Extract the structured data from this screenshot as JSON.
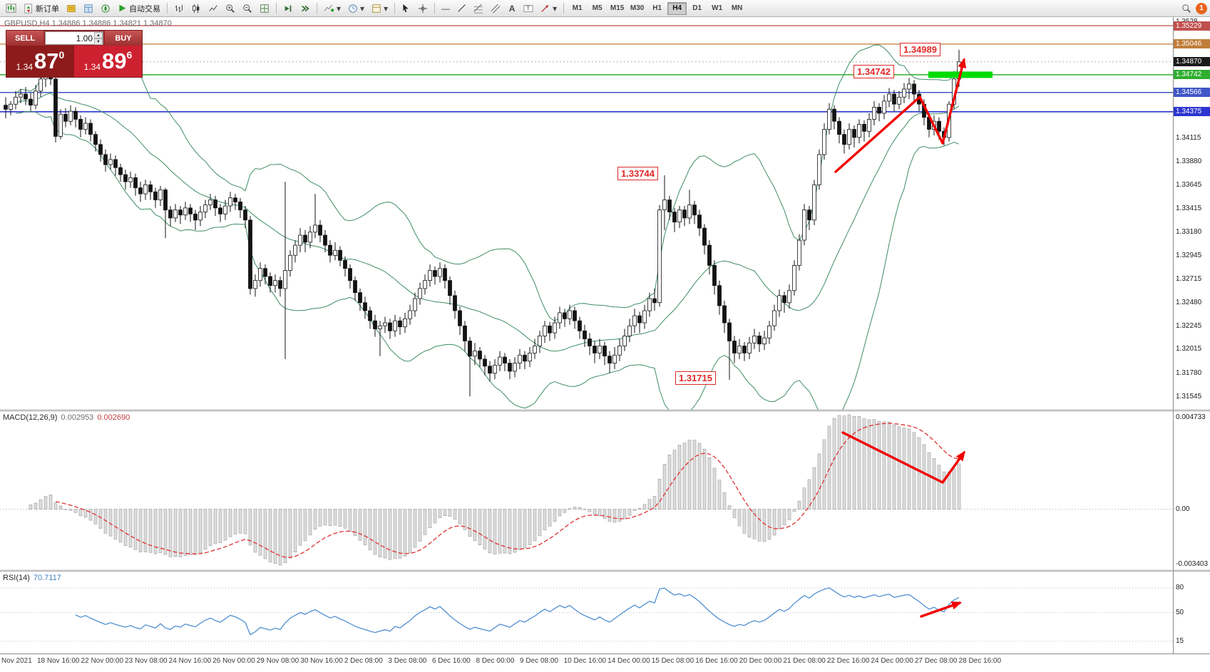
{
  "toolbar": {
    "new_order_label": "新订单",
    "autotrading_label": "自动交易",
    "timeframes": [
      "M1",
      "M5",
      "M15",
      "M30",
      "H1",
      "H4",
      "D1",
      "W1",
      "MN"
    ],
    "active_timeframe": "H4",
    "notification_count": "1"
  },
  "chart": {
    "symbol_title": "GBPUSD,H4 1.34886 1.34886 1.34821 1.34870",
    "trade_panel": {
      "sell_label": "SELL",
      "buy_label": "BUY",
      "volume": "1.00",
      "sell_price": {
        "prefix": "1.34",
        "big": "87",
        "sup": "0"
      },
      "buy_price": {
        "prefix": "1.34",
        "big": "89",
        "sup": "6"
      }
    },
    "highlight_price": 1.34742,
    "price_axis": {
      "top_partial_label": "1.3528",
      "plain_labels": [
        "1.34115",
        "1.33880",
        "1.33645",
        "1.33415",
        "1.33180",
        "1.32945",
        "1.32715",
        "1.32480",
        "1.32245",
        "1.32015",
        "1.31780",
        "1.31545"
      ],
      "line_labels": [
        {
          "text": "1.35229",
          "value": 1.35229,
          "color": "#c0504d",
          "line_color": "#c0504d",
          "style": "solid",
          "width": 1.2
        },
        {
          "text": "1.35046",
          "value": 1.35046,
          "color": "#c07e3a",
          "line_color": "#c07e3a",
          "style": "solid",
          "width": 1.2
        },
        {
          "text": "1.34870",
          "value": 1.3487,
          "color": "#1b1b1b",
          "line_color": "#b0b0b0",
          "style": "dotted",
          "width": 1
        },
        {
          "text": "1.34742",
          "value": 1.34742,
          "color": "#2fae2f",
          "line_color": "#2fae2f",
          "style": "solid",
          "width": 1.4
        },
        {
          "text": "1.34566",
          "value": 1.34566,
          "color": "#4156c8",
          "line_color": "#4156c8",
          "style": "solid",
          "width": 1.6
        },
        {
          "text": "1.34375",
          "value": 1.34375,
          "color": "#2c35cf",
          "line_color": "#2c35cf",
          "style": "solid",
          "width": 1.6
        }
      ]
    },
    "annotations": [
      {
        "text": "1.34989"
      },
      {
        "text": "1.34742"
      },
      {
        "text": "1.33744"
      },
      {
        "text": "1.31715"
      }
    ],
    "colors": {
      "bull": "#ffffff",
      "bear": "#131313",
      "wick": "#131313",
      "bollinger": "#3e8e63",
      "arrow": "#f20000",
      "highlight": "#00dc00",
      "macd_histogram": "#dcdcdc",
      "macd_histogram_border": "#9c9c9c",
      "macd_signal": "#e03030",
      "rsi_line": "#4f8fd0"
    }
  },
  "macd_panel": {
    "name": "MACD(12,26,9)",
    "main_value": "0.002953",
    "signal_value": "0.002690",
    "scale_max": "0.004733",
    "scale_zero": "0.00",
    "scale_min": "-0.003403"
  },
  "rsi_panel": {
    "name": "RSI(14)",
    "value": "70.7117",
    "levels": [
      "80",
      "50",
      "15"
    ]
  },
  "time_axis": {
    "labels": [
      "Nov 2021",
      "18 Nov 16:00",
      "22 Nov 00:00",
      "23 Nov 08:00",
      "24 Nov 16:00",
      "26 Nov 00:00",
      "29 Nov 08:00",
      "30 Nov 16:00",
      "2 Dec 08:00",
      "3 Dec 08:00",
      "6 Dec 16:00",
      "8 Dec 00:00",
      "9 Dec 08:00",
      "10 Dec 16:00",
      "14 Dec 00:00",
      "15 Dec 08:00",
      "16 Dec 16:00",
      "20 Dec 00:00",
      "21 Dec 08:00",
      "22 Dec 16:00",
      "24 Dec 00:00",
      "27 Dec 08:00",
      "28 Dec 16:00"
    ]
  },
  "chart_data": {
    "type": "candlestick",
    "symbol": "GBPUSD",
    "timeframe": "H4",
    "levels": [
      1.35229,
      1.35046,
      1.34742,
      1.34566,
      1.34375
    ],
    "current_price": 1.3487,
    "indicators": [
      {
        "type": "bollinger",
        "period": 20,
        "deviation": 2
      },
      {
        "type": "macd",
        "fast": 12,
        "slow": 26,
        "signal": 9,
        "values": [
          0.002953,
          0.00269
        ],
        "scale": [
          0.004733,
          0.0,
          -0.003403
        ]
      },
      {
        "type": "rsi",
        "period": 14,
        "value": 70.7117,
        "levels": [
          80,
          50,
          15
        ]
      }
    ],
    "annotated_prices": [
      1.34989,
      1.34742,
      1.33744,
      1.31715
    ],
    "ohlc": [
      [
        1.3444,
        1.3452,
        1.3431,
        1.344
      ],
      [
        1.344,
        1.3448,
        1.3434,
        1.3445
      ],
      [
        1.3445,
        1.3458,
        1.344,
        1.3452
      ],
      [
        1.3452,
        1.346,
        1.3446,
        1.3455
      ],
      [
        1.3455,
        1.3462,
        1.3444,
        1.345
      ],
      [
        1.345,
        1.3456,
        1.3438,
        1.3444
      ],
      [
        1.3444,
        1.3464,
        1.344,
        1.3458
      ],
      [
        1.3458,
        1.3477,
        1.3452,
        1.347
      ],
      [
        1.347,
        1.3482,
        1.3462,
        1.3476
      ],
      [
        1.3476,
        1.3482,
        1.3464,
        1.347
      ],
      [
        1.347,
        1.3483,
        1.3407,
        1.3413
      ],
      [
        1.3413,
        1.344,
        1.341,
        1.3435
      ],
      [
        1.3435,
        1.3441,
        1.3422,
        1.3428
      ],
      [
        1.3428,
        1.3444,
        1.3424,
        1.3438
      ],
      [
        1.3438,
        1.3442,
        1.3422,
        1.343
      ],
      [
        1.343,
        1.3434,
        1.3412,
        1.342
      ],
      [
        1.342,
        1.3432,
        1.3415,
        1.3426
      ],
      [
        1.3426,
        1.343,
        1.3408,
        1.3415
      ],
      [
        1.3415,
        1.3418,
        1.3398,
        1.3405
      ],
      [
        1.3405,
        1.341,
        1.3388,
        1.3395
      ],
      [
        1.3395,
        1.34,
        1.3378,
        1.3385
      ],
      [
        1.3385,
        1.3396,
        1.338,
        1.339
      ],
      [
        1.339,
        1.3394,
        1.3374,
        1.3382
      ],
      [
        1.3382,
        1.3386,
        1.3368,
        1.3375
      ],
      [
        1.3375,
        1.338,
        1.336,
        1.3368
      ],
      [
        1.3368,
        1.3378,
        1.3362,
        1.3372
      ],
      [
        1.3372,
        1.3376,
        1.3354,
        1.3362
      ],
      [
        1.3362,
        1.3368,
        1.3348,
        1.3356
      ],
      [
        1.3356,
        1.337,
        1.335,
        1.3365
      ],
      [
        1.3365,
        1.3369,
        1.335,
        1.3358
      ],
      [
        1.3358,
        1.3362,
        1.3342,
        1.335
      ],
      [
        1.335,
        1.3364,
        1.3344,
        1.336
      ],
      [
        1.336,
        1.3362,
        1.3312,
        1.334
      ],
      [
        1.334,
        1.3344,
        1.3324,
        1.3332
      ],
      [
        1.3332,
        1.3346,
        1.3328,
        1.334
      ],
      [
        1.334,
        1.3344,
        1.3326,
        1.3335
      ],
      [
        1.3335,
        1.3348,
        1.333,
        1.3342
      ],
      [
        1.3342,
        1.3346,
        1.3328,
        1.3336
      ],
      [
        1.3336,
        1.334,
        1.332,
        1.333
      ],
      [
        1.333,
        1.3344,
        1.3324,
        1.3338
      ],
      [
        1.3338,
        1.335,
        1.3332,
        1.3345
      ],
      [
        1.3345,
        1.3356,
        1.334,
        1.335
      ],
      [
        1.335,
        1.3354,
        1.3334,
        1.3342
      ],
      [
        1.3342,
        1.3346,
        1.3328,
        1.3336
      ],
      [
        1.3336,
        1.335,
        1.333,
        1.3344
      ],
      [
        1.3344,
        1.3358,
        1.3338,
        1.3352
      ],
      [
        1.3352,
        1.3356,
        1.334,
        1.3348
      ],
      [
        1.3348,
        1.3352,
        1.3332,
        1.334
      ],
      [
        1.334,
        1.3344,
        1.3322,
        1.333
      ],
      [
        1.333,
        1.3334,
        1.3256,
        1.3262
      ],
      [
        1.3262,
        1.3276,
        1.3254,
        1.327
      ],
      [
        1.327,
        1.3288,
        1.3264,
        1.3282
      ],
      [
        1.3282,
        1.3286,
        1.3266,
        1.3274
      ],
      [
        1.3274,
        1.3278,
        1.3258,
        1.3265
      ],
      [
        1.3265,
        1.3276,
        1.3258,
        1.327
      ],
      [
        1.327,
        1.3274,
        1.3254,
        1.3262
      ],
      [
        1.3262,
        1.3368,
        1.3192,
        1.328
      ],
      [
        1.328,
        1.33,
        1.3274,
        1.3295
      ],
      [
        1.3295,
        1.331,
        1.3288,
        1.3305
      ],
      [
        1.3305,
        1.3322,
        1.3298,
        1.3315
      ],
      [
        1.3315,
        1.332,
        1.3298,
        1.3308
      ],
      [
        1.3308,
        1.3324,
        1.3302,
        1.3318
      ],
      [
        1.3318,
        1.3356,
        1.3312,
        1.3325
      ],
      [
        1.3325,
        1.333,
        1.3308,
        1.3315
      ],
      [
        1.3315,
        1.332,
        1.3298,
        1.3305
      ],
      [
        1.3305,
        1.331,
        1.3288,
        1.3295
      ],
      [
        1.3295,
        1.3308,
        1.329,
        1.33
      ],
      [
        1.33,
        1.3304,
        1.3284,
        1.329
      ],
      [
        1.329,
        1.3294,
        1.3274,
        1.3282
      ],
      [
        1.3282,
        1.3286,
        1.3262,
        1.327
      ],
      [
        1.327,
        1.3274,
        1.325,
        1.3258
      ],
      [
        1.3258,
        1.3262,
        1.324,
        1.3248
      ],
      [
        1.3248,
        1.3254,
        1.3232,
        1.324
      ],
      [
        1.324,
        1.3244,
        1.3222,
        1.323
      ],
      [
        1.323,
        1.3236,
        1.3214,
        1.3222
      ],
      [
        1.3222,
        1.323,
        1.3195,
        1.3225
      ],
      [
        1.3225,
        1.3234,
        1.3218,
        1.3228
      ],
      [
        1.3228,
        1.3232,
        1.3212,
        1.322
      ],
      [
        1.322,
        1.3236,
        1.3214,
        1.323
      ],
      [
        1.323,
        1.3234,
        1.3216,
        1.3224
      ],
      [
        1.3224,
        1.3238,
        1.3218,
        1.3232
      ],
      [
        1.3232,
        1.3246,
        1.3226,
        1.324
      ],
      [
        1.324,
        1.3258,
        1.3234,
        1.3252
      ],
      [
        1.3252,
        1.3268,
        1.3246,
        1.3262
      ],
      [
        1.3262,
        1.3276,
        1.3256,
        1.327
      ],
      [
        1.327,
        1.3286,
        1.3264,
        1.328
      ],
      [
        1.328,
        1.3284,
        1.3266,
        1.3274
      ],
      [
        1.3274,
        1.3288,
        1.3268,
        1.3282
      ],
      [
        1.3282,
        1.3286,
        1.3262,
        1.327
      ],
      [
        1.327,
        1.3274,
        1.3246,
        1.3255
      ],
      [
        1.3255,
        1.326,
        1.3232,
        1.324
      ],
      [
        1.324,
        1.3244,
        1.3216,
        1.3225
      ],
      [
        1.3225,
        1.323,
        1.32,
        1.321
      ],
      [
        1.321,
        1.3214,
        1.3155,
        1.3195
      ],
      [
        1.3195,
        1.3208,
        1.3186,
        1.32
      ],
      [
        1.32,
        1.3204,
        1.3184,
        1.3192
      ],
      [
        1.3192,
        1.3196,
        1.3176,
        1.3185
      ],
      [
        1.3185,
        1.319,
        1.317,
        1.3178
      ],
      [
        1.3178,
        1.3192,
        1.3172,
        1.3186
      ],
      [
        1.3186,
        1.32,
        1.318,
        1.3194
      ],
      [
        1.3194,
        1.3198,
        1.318,
        1.3188
      ],
      [
        1.3188,
        1.3192,
        1.3172,
        1.318
      ],
      [
        1.318,
        1.3194,
        1.3174,
        1.3188
      ],
      [
        1.3188,
        1.3202,
        1.3182,
        1.3196
      ],
      [
        1.3196,
        1.32,
        1.3182,
        1.319
      ],
      [
        1.319,
        1.3204,
        1.3184,
        1.3198
      ],
      [
        1.3198,
        1.3212,
        1.3192,
        1.3205
      ],
      [
        1.3205,
        1.322,
        1.3198,
        1.3215
      ],
      [
        1.3215,
        1.323,
        1.3208,
        1.3225
      ],
      [
        1.3225,
        1.3229,
        1.321,
        1.3218
      ],
      [
        1.3218,
        1.3234,
        1.3212,
        1.3228
      ],
      [
        1.3228,
        1.3244,
        1.3222,
        1.3238
      ],
      [
        1.3238,
        1.3242,
        1.3224,
        1.3232
      ],
      [
        1.3232,
        1.3246,
        1.3226,
        1.324
      ],
      [
        1.324,
        1.3244,
        1.3222,
        1.323
      ],
      [
        1.323,
        1.3234,
        1.3212,
        1.322
      ],
      [
        1.322,
        1.3226,
        1.3204,
        1.3212
      ],
      [
        1.3212,
        1.3218,
        1.3196,
        1.3205
      ],
      [
        1.3205,
        1.321,
        1.3188,
        1.3198
      ],
      [
        1.3198,
        1.3212,
        1.3192,
        1.3205
      ],
      [
        1.3205,
        1.3209,
        1.3186,
        1.3195
      ],
      [
        1.3195,
        1.32,
        1.3178,
        1.3188
      ],
      [
        1.3188,
        1.3204,
        1.3182,
        1.3196
      ],
      [
        1.3196,
        1.3212,
        1.319,
        1.3205
      ],
      [
        1.3205,
        1.3222,
        1.32,
        1.3215
      ],
      [
        1.3215,
        1.3232,
        1.3209,
        1.3225
      ],
      [
        1.3225,
        1.3242,
        1.3218,
        1.3235
      ],
      [
        1.3235,
        1.3239,
        1.3218,
        1.3228
      ],
      [
        1.3228,
        1.3246,
        1.3222,
        1.324
      ],
      [
        1.324,
        1.3258,
        1.3234,
        1.3252
      ],
      [
        1.3252,
        1.3262,
        1.324,
        1.3248
      ],
      [
        1.3248,
        1.3345,
        1.3244,
        1.334
      ],
      [
        1.334,
        1.33744,
        1.332,
        1.335
      ],
      [
        1.335,
        1.3354,
        1.333,
        1.3338
      ],
      [
        1.3338,
        1.3342,
        1.3318,
        1.3328
      ],
      [
        1.3328,
        1.3344,
        1.3322,
        1.334
      ],
      [
        1.334,
        1.3344,
        1.3324,
        1.3332
      ],
      [
        1.3332,
        1.336,
        1.3326,
        1.3345
      ],
      [
        1.3345,
        1.3349,
        1.3326,
        1.3335
      ],
      [
        1.3335,
        1.334,
        1.3314,
        1.3322
      ],
      [
        1.3322,
        1.3326,
        1.3296,
        1.3305
      ],
      [
        1.3305,
        1.331,
        1.3276,
        1.3285
      ],
      [
        1.3285,
        1.329,
        1.3256,
        1.3265
      ],
      [
        1.3265,
        1.327,
        1.3236,
        1.3245
      ],
      [
        1.3245,
        1.325,
        1.3218,
        1.3228
      ],
      [
        1.3228,
        1.3232,
        1.31715,
        1.321
      ],
      [
        1.321,
        1.3215,
        1.3188,
        1.3198
      ],
      [
        1.3198,
        1.3212,
        1.3192,
        1.3205
      ],
      [
        1.3205,
        1.3209,
        1.319,
        1.3198
      ],
      [
        1.3198,
        1.3214,
        1.3192,
        1.3208
      ],
      [
        1.3208,
        1.3222,
        1.3202,
        1.3215
      ],
      [
        1.3215,
        1.3219,
        1.3199,
        1.3207
      ],
      [
        1.3207,
        1.322,
        1.3201,
        1.3213
      ],
      [
        1.3213,
        1.323,
        1.3207,
        1.3225
      ],
      [
        1.3225,
        1.3246,
        1.322,
        1.324
      ],
      [
        1.324,
        1.3261,
        1.3234,
        1.3255
      ],
      [
        1.3255,
        1.3259,
        1.3238,
        1.3248
      ],
      [
        1.3248,
        1.3266,
        1.3242,
        1.326
      ],
      [
        1.326,
        1.329,
        1.3255,
        1.3285
      ],
      [
        1.3285,
        1.3316,
        1.328,
        1.331
      ],
      [
        1.331,
        1.3346,
        1.3305,
        1.334
      ],
      [
        1.334,
        1.3344,
        1.332,
        1.333
      ],
      [
        1.333,
        1.337,
        1.3325,
        1.3365
      ],
      [
        1.3365,
        1.34,
        1.336,
        1.3395
      ],
      [
        1.3395,
        1.3426,
        1.339,
        1.342
      ],
      [
        1.342,
        1.3446,
        1.3415,
        1.344
      ],
      [
        1.344,
        1.3444,
        1.342,
        1.3428
      ],
      [
        1.3428,
        1.3432,
        1.3406,
        1.3415
      ],
      [
        1.3415,
        1.342,
        1.3396,
        1.3405
      ],
      [
        1.3405,
        1.3426,
        1.34,
        1.342
      ],
      [
        1.342,
        1.3424,
        1.3402,
        1.3412
      ],
      [
        1.3412,
        1.343,
        1.3406,
        1.3425
      ],
      [
        1.3425,
        1.3429,
        1.3408,
        1.3418
      ],
      [
        1.3418,
        1.3436,
        1.3412,
        1.343
      ],
      [
        1.343,
        1.3448,
        1.3424,
        1.3442
      ],
      [
        1.3442,
        1.3446,
        1.3428,
        1.3436
      ],
      [
        1.3436,
        1.3454,
        1.343,
        1.3448
      ],
      [
        1.3448,
        1.3461,
        1.3442,
        1.3455
      ],
      [
        1.3455,
        1.3459,
        1.3438,
        1.3445
      ],
      [
        1.3445,
        1.3458,
        1.344,
        1.3452
      ],
      [
        1.3452,
        1.3466,
        1.3446,
        1.346
      ],
      [
        1.346,
        1.3471,
        1.345,
        1.3465
      ],
      [
        1.3465,
        1.3469,
        1.3446,
        1.3455
      ],
      [
        1.3455,
        1.3459,
        1.3438,
        1.3445
      ],
      [
        1.3445,
        1.345,
        1.3424,
        1.3432
      ],
      [
        1.3432,
        1.3436,
        1.3412,
        1.342
      ],
      [
        1.342,
        1.3434,
        1.3414,
        1.3428
      ],
      [
        1.3428,
        1.3432,
        1.341,
        1.3418
      ],
      [
        1.3418,
        1.3422,
        1.3404,
        1.3412
      ],
      [
        1.3412,
        1.3448,
        1.3408,
        1.3445
      ],
      [
        1.3445,
        1.3478,
        1.344,
        1.347
      ],
      [
        1.347,
        1.34989,
        1.3462,
        1.3487
      ]
    ]
  }
}
